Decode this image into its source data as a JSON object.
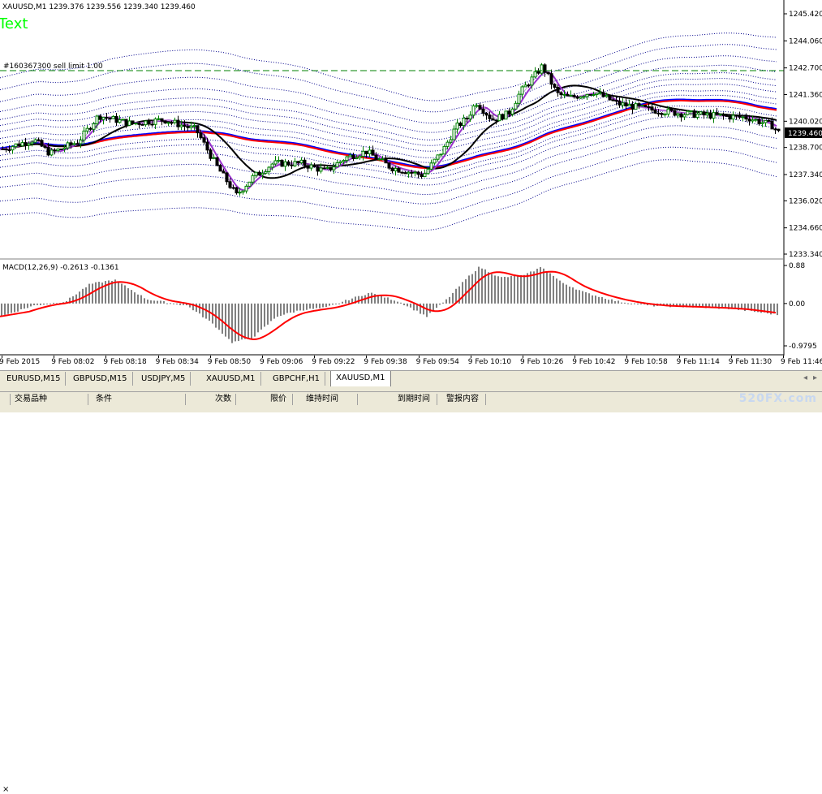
{
  "chart": {
    "symbol_info": "XAUUSD,M1  1239.376 1239.556 1239.340 1239.460",
    "text_label": "Text",
    "order_line_label": "#160367300 sell limit 1.00",
    "current_price": "1239.460",
    "price_ticks": [
      "1245.420",
      "1244.060",
      "1242.700",
      "1241.360",
      "1240.020",
      "1238.700",
      "1237.340",
      "1236.020",
      "1234.660",
      "1233.340"
    ],
    "price_tick_values": [
      1245.42,
      1244.06,
      1242.7,
      1241.36,
      1240.02,
      1238.7,
      1237.34,
      1236.02,
      1234.66,
      1233.34
    ]
  },
  "macd": {
    "label": "MACD(12,26,9) -0.2613 -0.1361",
    "ticks": [
      "0.88",
      "0.00",
      "-0.9795"
    ]
  },
  "time_axis": {
    "labels": [
      "9 Feb 2015",
      "9 Feb 08:02",
      "9 Feb 08:18",
      "9 Feb 08:34",
      "9 Feb 08:50",
      "9 Feb 09:06",
      "9 Feb 09:22",
      "9 Feb 09:38",
      "9 Feb 09:54",
      "9 Feb 10:10",
      "9 Feb 10:26",
      "9 Feb 10:42",
      "9 Feb 10:58",
      "9 Feb 11:14",
      "9 Feb 11:30",
      "9 Feb 11:46"
    ]
  },
  "tabs": [
    {
      "label": "EURUSD,M15",
      "active": false
    },
    {
      "label": "GBPUSD,M15",
      "active": false
    },
    {
      "label": "USDJPY,M5",
      "active": false
    },
    {
      "label": "XAUUSD,M1",
      "active": false
    },
    {
      "label": "GBPCHF,H1",
      "active": false
    },
    {
      "label": "XAUUSD,M1",
      "active": true
    }
  ],
  "terminal": {
    "side_label": "×",
    "columns": [
      "交易品种",
      "条件",
      "次数",
      "限价",
      "维持时间",
      "到期时间",
      "警报内容"
    ]
  },
  "watermark": "520FX.com",
  "colors": {
    "bull": "#008000",
    "bear": "#000000",
    "ma_black": "#000000",
    "ma_purple": "#9932cc",
    "ma_red": "#ff0000",
    "ma_blue": "#0000ff",
    "envelope": "#00008b",
    "macd_signal": "#ff0000",
    "macd_hist": "#808080"
  }
}
